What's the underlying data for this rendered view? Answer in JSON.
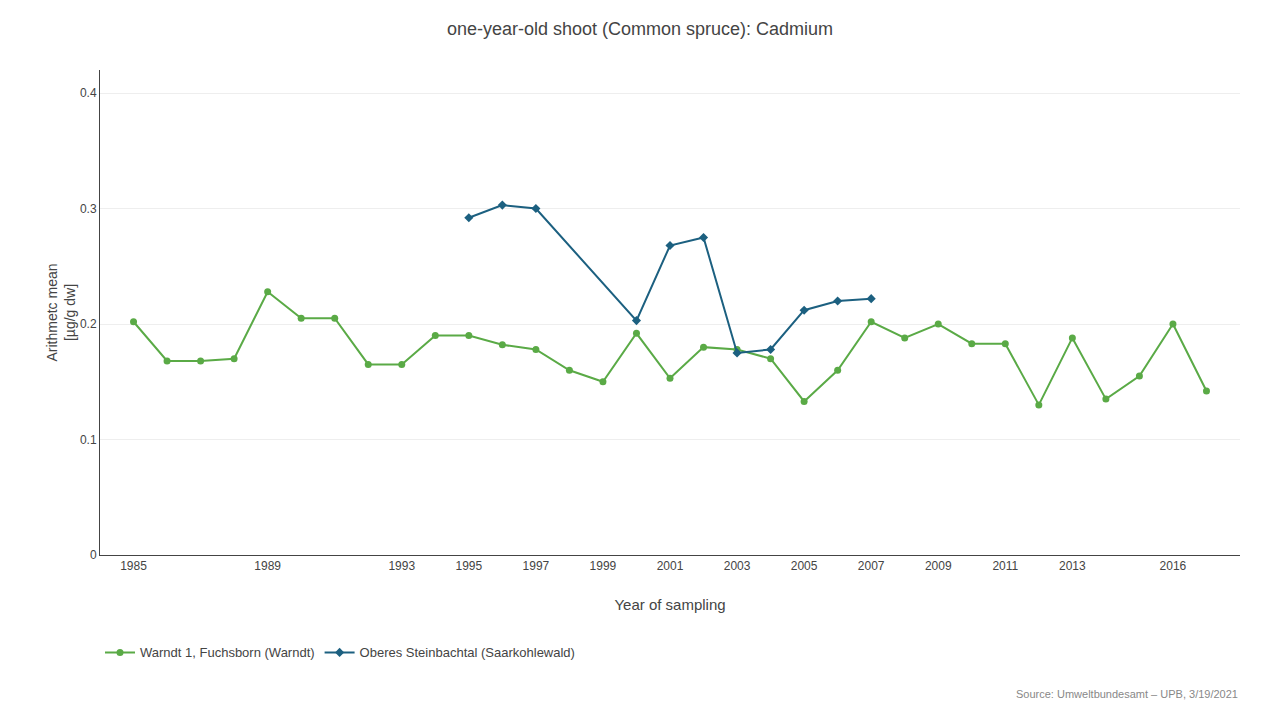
{
  "chart_data": {
    "type": "line",
    "title": "one-year-old shoot (Common spruce): Cadmium",
    "x_label": "Year of sampling",
    "y_label": "Arithmetc mean\n[µg/g dw]",
    "annotations": [
      "Source: Umweltbundesamt – UPB, 3/19/2021"
    ],
    "xlim": [
      1984,
      2018
    ],
    "xticks": [
      1985,
      1989,
      1993,
      1995,
      1997,
      1999,
      2001,
      2003,
      2005,
      2007,
      2009,
      2011,
      2013,
      2016
    ],
    "ylim": [
      0,
      0.42
    ],
    "yticks": [
      0,
      0.1,
      0.2,
      0.3,
      0.4
    ],
    "grid": "y",
    "legend": "bottom",
    "series": [
      {
        "name": "Warndt 1, Fuchsborn (Warndt)",
        "color": "#5aaa46",
        "marker": "circle",
        "x": [
          1985,
          1986,
          1987,
          1988,
          1989,
          1990,
          1991,
          1992,
          1993,
          1994,
          1995,
          1996,
          1997,
          1998,
          1999,
          2000,
          2001,
          2002,
          2003,
          2004,
          2005,
          2006,
          2007,
          2008,
          2009,
          2010,
          2011,
          2012,
          2013,
          2014,
          2015,
          2016,
          2017
        ],
        "values": [
          0.202,
          0.168,
          0.168,
          0.17,
          0.228,
          0.205,
          0.205,
          0.165,
          0.165,
          0.19,
          0.19,
          0.182,
          0.178,
          0.16,
          0.15,
          0.192,
          0.153,
          0.18,
          0.178,
          0.17,
          0.133,
          0.16,
          0.202,
          0.188,
          0.2,
          0.183,
          0.183,
          0.13,
          0.188,
          0.135,
          0.155,
          0.2,
          0.142
        ]
      },
      {
        "name": "Oberes Steinbachtal (Saarkohlewald)",
        "color": "#1c6080",
        "marker": "diamond",
        "x": [
          1995,
          1996,
          1997,
          2000,
          2001,
          2002,
          2003,
          2004,
          2005,
          2006,
          2007
        ],
        "values": [
          0.292,
          0.303,
          0.3,
          0.203,
          0.268,
          0.275,
          0.175,
          0.178,
          0.212,
          0.22,
          0.222
        ]
      }
    ]
  }
}
